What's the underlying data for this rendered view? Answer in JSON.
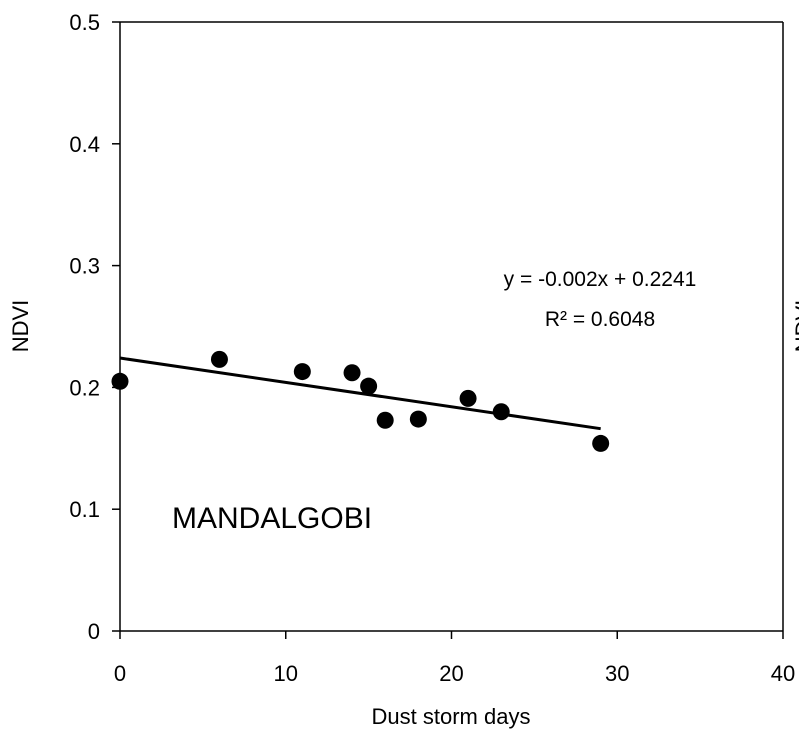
{
  "chart_data": {
    "type": "scatter",
    "title": "",
    "xlabel": "Dust storm days",
    "ylabel": "NDVI",
    "xlim": [
      0,
      40
    ],
    "ylim": [
      0,
      0.5
    ],
    "x_ticks": [
      "0",
      "10",
      "20",
      "30",
      "40"
    ],
    "y_ticks": [
      "0",
      "0.1",
      "0.2",
      "0.3",
      "0.4",
      "0.5"
    ],
    "grid": false,
    "legend": "none",
    "series": [
      {
        "points": [
          {
            "x": 0,
            "y": 0.205
          },
          {
            "x": 6,
            "y": 0.223
          },
          {
            "x": 11,
            "y": 0.213
          },
          {
            "x": 14,
            "y": 0.212
          },
          {
            "x": 15,
            "y": 0.201
          },
          {
            "x": 16,
            "y": 0.173
          },
          {
            "x": 18,
            "y": 0.174
          },
          {
            "x": 21,
            "y": 0.191
          },
          {
            "x": 23,
            "y": 0.18
          },
          {
            "x": 29,
            "y": 0.154
          }
        ]
      }
    ],
    "trendline": {
      "slope": -0.002,
      "intercept": 0.2241,
      "x_range": [
        0,
        29
      ],
      "equation": "y = -0.002x + 0.2241",
      "r_squared": "R² = 0.6048"
    },
    "annotation": "MANDALGOBI",
    "clipped_label": "NDVI",
    "colors": {
      "marker": "#000000",
      "line": "#000000"
    }
  }
}
